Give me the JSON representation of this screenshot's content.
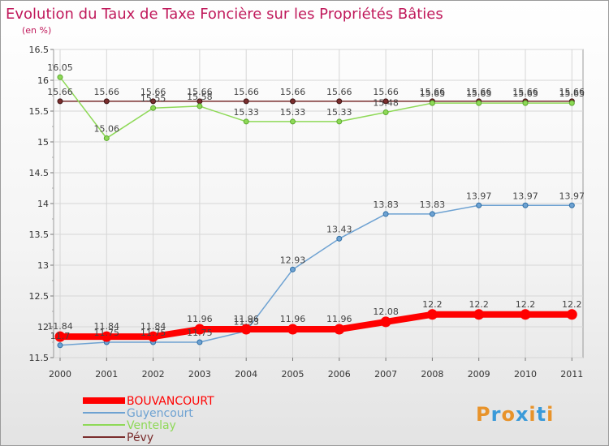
{
  "chart_data": {
    "type": "line",
    "title": "Evolution du Taux de Taxe Foncière sur les Propriétés Bâties",
    "subtitle": "(en %)",
    "categories": [
      "2000",
      "2001",
      "2002",
      "2003",
      "2004",
      "2005",
      "2006",
      "2007",
      "2008",
      "2009",
      "2010",
      "2011"
    ],
    "ylim": [
      11.5,
      16.5
    ],
    "yticks": [
      "11.5",
      "12",
      "12.5",
      "13",
      "13.5",
      "14",
      "14.5",
      "15",
      "15.5",
      "16",
      "16.5"
    ],
    "grid": true,
    "legend_position": "bottom-left",
    "series": [
      {
        "name": "BOUVANCOURT",
        "color": "#ff0000",
        "values": [
          11.84,
          11.84,
          11.84,
          11.96,
          11.96,
          11.96,
          11.96,
          12.08,
          12.2,
          12.2,
          12.2,
          12.2
        ],
        "labels": [
          "11.84",
          "11.84",
          "11.84",
          "11.96",
          "11.96",
          "11.96",
          "11.96",
          "12.08",
          "12.2",
          "12.2",
          "12.2",
          "12.2"
        ]
      },
      {
        "name": "Guyencourt",
        "color": "#6ea2d2",
        "values": [
          11.7,
          11.75,
          11.75,
          11.75,
          11.93,
          12.93,
          13.43,
          13.83,
          13.83,
          13.97,
          13.97,
          13.97
        ],
        "labels": [
          "11.7",
          "11.75",
          "11.75",
          "11.75",
          "11.93",
          "12.93",
          "13.43",
          "13.83",
          "13.83",
          "13.97",
          "13.97",
          "13.97"
        ]
      },
      {
        "name": "Ventelay",
        "color": "#8ed957",
        "values": [
          16.05,
          15.06,
          15.55,
          15.58,
          15.33,
          15.33,
          15.33,
          15.48,
          15.63,
          15.63,
          15.63,
          15.63
        ],
        "labels": [
          "16.05",
          "15.06",
          "15.55",
          "15.58",
          "15.33",
          "15.33",
          "15.33",
          "15.48",
          "15.63",
          "15.63",
          "15.63",
          "15.63"
        ]
      },
      {
        "name": "Pévy",
        "color": "#7a2d2d",
        "values": [
          15.66,
          15.66,
          15.66,
          15.66,
          15.66,
          15.66,
          15.66,
          15.66,
          15.66,
          15.66,
          15.66,
          15.66
        ],
        "labels": [
          "15.66",
          "15.66",
          "15.66",
          "15.66",
          "15.66",
          "15.66",
          "15.66",
          "15.66",
          "15.66",
          "15.66",
          "15.66",
          "15.66"
        ]
      }
    ]
  },
  "logo": {
    "text": "Proxiti",
    "letter_colors": [
      "#e8932a",
      "#3a9ad9",
      "#e8932a",
      "#3a9ad9",
      "#e8932a",
      "#3a9ad9",
      "#e8932a"
    ]
  }
}
